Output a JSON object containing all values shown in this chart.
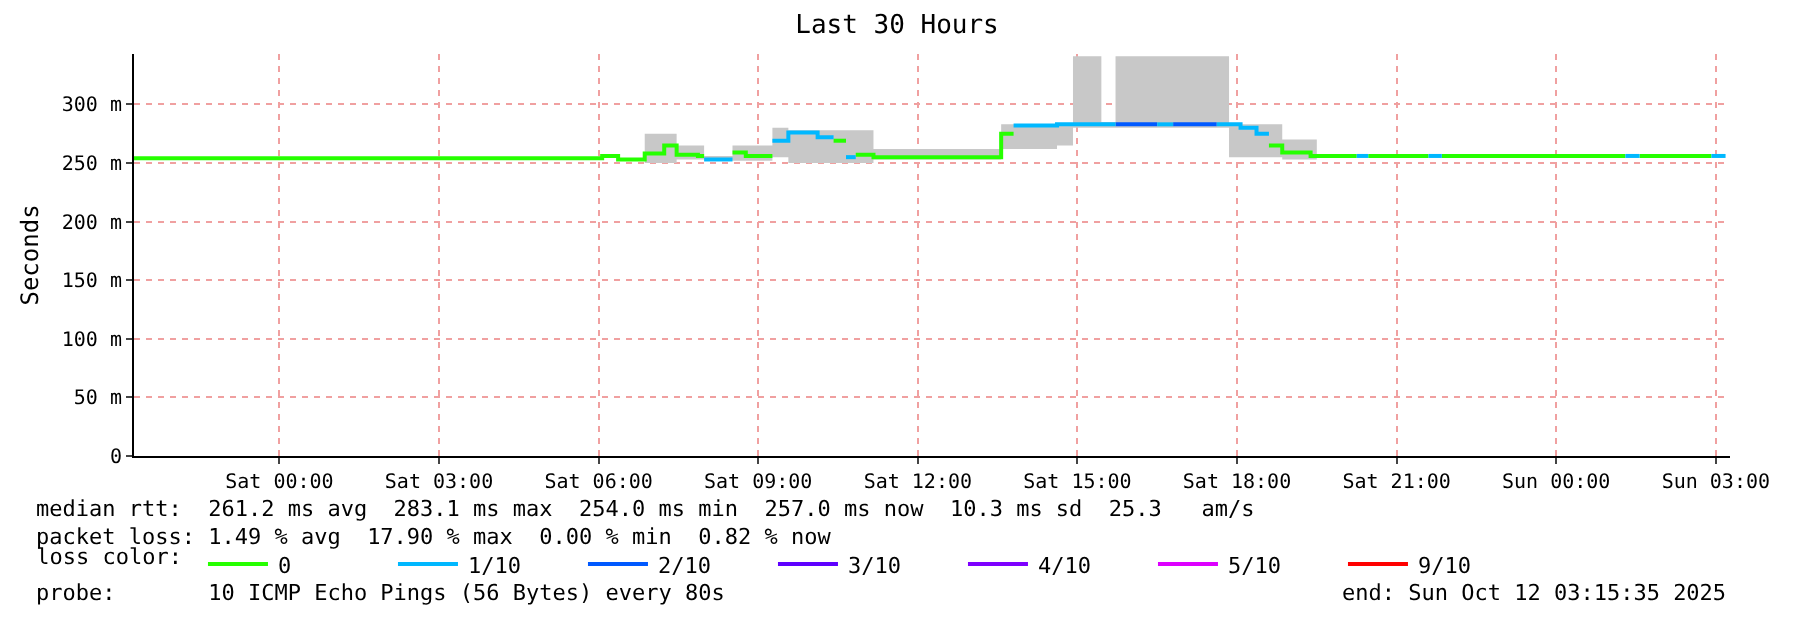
{
  "chart_data": {
    "type": "step",
    "title": "Last 30 Hours",
    "ylabel": "Seconds",
    "legend_title": "loss color:",
    "series": [
      {
        "color": "#c8c8c8",
        "x": [
          "2025-10-11T06:52",
          "2025-10-11T07:28",
          "2025-10-11T07:59",
          "2025-10-11T08:31",
          "2025-10-11T08:46",
          "2025-10-11T09:16",
          "2025-10-11T09:34",
          "2025-10-11T11:10",
          "2025-10-11T13:34",
          "2025-10-11T14:37",
          "2025-10-11T14:55",
          "2025-10-11T15:27",
          "2025-10-11T15:43",
          "2025-10-11T17:51",
          "2025-10-11T18:51",
          "2025-10-11T19:30"
        ],
        "values": [
          null,
          null,
          null,
          null,
          null,
          null,
          null,
          null,
          null,
          null,
          null,
          null,
          null,
          null,
          null,
          null
        ],
        "lower": [
          250,
          253,
          252,
          252,
          252,
          255,
          250,
          253,
          262,
          265,
          280,
          280,
          280,
          255,
          253,
          253
        ],
        "upper": [
          275,
          265,
          256,
          265,
          265,
          280,
          278,
          262,
          283,
          283,
          341,
          285,
          341,
          283,
          270,
          270
        ]
      },
      {
        "name": "0",
        "color": "#26ff00",
        "x": [
          "2025-10-10T21:16",
          "2025-10-11T06:04",
          "2025-10-11T06:22",
          "2025-10-11T06:52",
          "2025-10-11T07:14",
          "2025-10-11T07:28",
          "2025-10-11T07:52",
          "2025-10-11T07:59"
        ],
        "values": [
          254,
          256,
          253,
          258,
          265,
          257,
          256,
          256
        ]
      },
      {
        "name": "1/10",
        "color": "#00b8ff",
        "x": [
          "2025-10-11T07:59",
          "2025-10-11T08:31"
        ],
        "values": [
          253,
          253
        ]
      },
      {
        "name": "2/10",
        "color": "#0059ff",
        "x": [
          "2025-10-11T15:43",
          "2025-10-11T16:30"
        ],
        "values": [
          283,
          283
        ]
      },
      {
        "name": "3/10",
        "color": "#5e00ff"
      },
      {
        "name": "4/10",
        "color": "#7e00ff"
      },
      {
        "name": "5/10",
        "color": "#dd00ff"
      },
      {
        "name": "9/10",
        "color": "#ff0000"
      },
      {
        "color": "#26ff00",
        "x": [
          "2025-10-11T08:31",
          "2025-10-11T08:46",
          "2025-10-11T09:16"
        ],
        "values": [
          259,
          256,
          256
        ]
      },
      {
        "color": "#26ff00",
        "x": [
          "2025-10-11T10:25",
          "2025-10-11T10:39"
        ],
        "values": [
          269,
          269
        ]
      },
      {
        "color": "#26ff00",
        "x": [
          "2025-10-11T10:50",
          "2025-10-11T11:10",
          "2025-10-11T13:34",
          "2025-10-11T13:48"
        ],
        "values": [
          257,
          255,
          275,
          275
        ]
      },
      {
        "color": "#26ff00",
        "x": [
          "2025-10-11T18:36",
          "2025-10-11T18:51",
          "2025-10-11T19:23",
          "2025-10-11T20:15"
        ],
        "values": [
          265,
          259,
          256,
          256
        ]
      },
      {
        "color": "#26ff00",
        "x": [
          "2025-10-11T20:28",
          "2025-10-11T21:36"
        ],
        "values": [
          256,
          256
        ]
      },
      {
        "color": "#26ff00",
        "x": [
          "2025-10-11T21:51",
          "2025-10-12T01:18"
        ],
        "values": [
          256,
          256
        ]
      },
      {
        "color": "#26ff00",
        "x": [
          "2025-10-12T01:34",
          "2025-10-12T02:55"
        ],
        "values": [
          256,
          256
        ]
      },
      {
        "color": "#00b8ff",
        "x": [
          "2025-10-11T09:16",
          "2025-10-11T09:34",
          "2025-10-11T10:07",
          "2025-10-11T10:25"
        ],
        "values": [
          269,
          276,
          272,
          272
        ]
      },
      {
        "color": "#00b8ff",
        "x": [
          "2025-10-11T10:39",
          "2025-10-11T10:50"
        ],
        "values": [
          255,
          255
        ]
      },
      {
        "color": "#00b8ff",
        "x": [
          "2025-10-11T13:48",
          "2025-10-11T14:37",
          "2025-10-11T15:43"
        ],
        "values": [
          282,
          283,
          283
        ]
      },
      {
        "color": "#00b8ff",
        "x": [
          "2025-10-11T16:30",
          "2025-10-11T16:48"
        ],
        "values": [
          283,
          283
        ]
      },
      {
        "color": "#00b8ff",
        "x": [
          "2025-10-11T17:37",
          "2025-10-11T18:04",
          "2025-10-11T18:22",
          "2025-10-11T18:36"
        ],
        "values": [
          283,
          280,
          275,
          275
        ]
      },
      {
        "color": "#00b8ff",
        "x": [
          "2025-10-11T20:15",
          "2025-10-11T20:28"
        ],
        "values": [
          256,
          256
        ]
      },
      {
        "color": "#00b8ff",
        "x": [
          "2025-10-11T21:36",
          "2025-10-11T21:51"
        ],
        "values": [
          256,
          256
        ]
      },
      {
        "color": "#00b8ff",
        "x": [
          "2025-10-12T01:18",
          "2025-10-12T01:34"
        ],
        "values": [
          256,
          256
        ]
      },
      {
        "color": "#00b8ff",
        "x": [
          "2025-10-12T02:55",
          "2025-10-12T03:11"
        ],
        "values": [
          256,
          256
        ]
      },
      {
        "color": "#0059ff",
        "x": [
          "2025-10-11T16:48",
          "2025-10-11T17:37"
        ],
        "values": [
          283,
          283
        ]
      }
    ],
    "xlim": [
      "2025-10-10T21:16",
      "2025-10-12T03:16"
    ],
    "xticks": [
      {
        "value": "2025-10-11T00:00",
        "label": "Sat 00:00"
      },
      {
        "value": "2025-10-11T03:00",
        "label": "Sat 03:00"
      },
      {
        "value": "2025-10-11T06:00",
        "label": "Sat 06:00"
      },
      {
        "value": "2025-10-11T09:00",
        "label": "Sat 09:00"
      },
      {
        "value": "2025-10-11T12:00",
        "label": "Sat 12:00"
      },
      {
        "value": "2025-10-11T15:00",
        "label": "Sat 15:00"
      },
      {
        "value": "2025-10-11T18:00",
        "label": "Sat 18:00"
      },
      {
        "value": "2025-10-11T21:00",
        "label": "Sat 21:00"
      },
      {
        "value": "2025-10-12T00:00",
        "label": "Sun 00:00"
      },
      {
        "value": "2025-10-12T03:00",
        "label": "Sun 03:00"
      }
    ],
    "ylim": [
      0,
      343
    ],
    "yticks": [
      0,
      {
        "value": 50,
        "label": "50 m"
      },
      {
        "value": 100,
        "label": "100 m"
      },
      {
        "value": 150,
        "label": "150 m"
      },
      {
        "value": 200,
        "label": "200 m"
      },
      {
        "value": 250,
        "label": "250 m"
      },
      {
        "value": 300,
        "label": "300 m"
      }
    ],
    "grid": true,
    "legend": "bottom",
    "marker": "none",
    "line_style": "solid",
    "annotations": [
      "median rtt:  261.2 ms avg  283.1 ms max  254.0 ms min  257.0 ms now  10.3 ms sd  25.3   am/s",
      "packet loss: 1.49 % avg  17.90 % max  0.00 % min  0.82 % now",
      "probe:       10 ICMP Echo Pings (56 Bytes) every 80s",
      "end: Sun Oct 12 03:15:35 2025"
    ]
  }
}
